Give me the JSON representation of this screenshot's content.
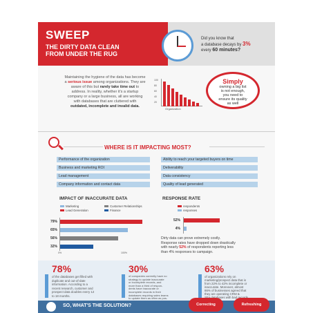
{
  "header": {
    "title": "SWEEP",
    "subtitle_line1": "THE DIRTY DATA CLEAN",
    "subtitle_line2": "FROM UNDER THE RUG"
  },
  "decay_question": {
    "text_a": "Did you know that",
    "text_b": "a database decays by",
    "percent": "3%",
    "text_c": "every",
    "period": "60 minutes?"
  },
  "intro": {
    "p1": "Maintaining the hygiene of the data has become",
    "p2a": "a",
    "serious": "serious issue",
    "p2b": "among organizations. They are",
    "p3a": "aware of this but",
    "rarely": "rarely take time out",
    "p3b": "to",
    "p4": "address. In reality, whether it's a startup",
    "p5": "company or a large business, all are working",
    "p6": "with databases that are cluttered with",
    "outdated": "outdated, incomplete and invalid data."
  },
  "mini_chart": {
    "xlabel": "Organization",
    "ticks": [
      "100",
      "80",
      "60",
      "40",
      "20"
    ]
  },
  "simply": {
    "title": "Simply",
    "l1": "owning a big list",
    "l2": "is not enough,",
    "l3": "you need to",
    "l4": "ensure its quality",
    "l5": "as well"
  },
  "where": {
    "title": "WHERE IS IT IMPACTING MOST?",
    "left": [
      "Performance of the organization",
      "Business and marketing ROI",
      "Lead management",
      "Company information and contact data"
    ],
    "right": [
      "Ability to reach your targeted buyers on time",
      "Deliverability",
      "Data consistency",
      "Quality of lead generated"
    ]
  },
  "impact": {
    "title": "IMPACT OF INACCURATE DATA",
    "legend": [
      "Marketing",
      "Lead Generation",
      "Customer Relationships",
      "Finance"
    ],
    "legend_colors": [
      "#8fb8de",
      "#d4272e",
      "#7f7f7f",
      "#1f5aa0"
    ],
    "axis_min": "0%",
    "axis_max": "100%"
  },
  "response": {
    "title": "RESPONSE RATE",
    "legend": [
      "respondents",
      "responses"
    ],
    "legend_colors": [
      "#d4272e",
      "#8fb8de"
    ]
  },
  "response_note": {
    "a": "Dirty data can prove extremely costly.",
    "b": "Response rates have dropped down drastically",
    "c1": "with nearly",
    "pct": "52%",
    "c2": "of respondents reporting less",
    "d": "than 4% responses to campaign."
  },
  "chart_data": [
    {
      "type": "bar",
      "title": "IMPACT OF INACCURATE DATA",
      "categories": [
        "79%",
        "65%",
        "56%",
        "32%"
      ],
      "values": [
        79,
        65,
        56,
        32
      ],
      "colors": [
        "#d4272e",
        "#8fb8de",
        "#7f7f7f",
        "#1f5aa0"
      ],
      "xlim": [
        0,
        100
      ],
      "xlabel": "",
      "ylabel": ""
    },
    {
      "type": "bar",
      "title": "RESPONSE RATE",
      "categories": [
        "52%",
        "4%"
      ],
      "values": [
        52,
        4
      ],
      "colors": [
        "#d4272e",
        "#8fb8de"
      ],
      "xlabel": "",
      "ylabel": ""
    }
  ],
  "stats": [
    {
      "big": "78%",
      "l1": "of the databases get filled with",
      "l2": "duplicate and out-of-date",
      "l3": "information. According to a",
      "l4": "recent research, customer and",
      "l5": "prospect data doubles every 12",
      "l6": "to 18 months."
    },
    {
      "big": "30%",
      "l1": "of companies currently have no",
      "l2": "strategy to update inaccurate",
      "l3": "or incomplete records, and",
      "l4": "more than a third of respon-",
      "l5": "dents have inaccurate or",
      "l6": "incomplete records in their",
      "l7": "databases requiring sales teams",
      "l8": "to update them as often as pos-",
      "l9": "sible"
    },
    {
      "big": "63%",
      "l1": "of organizations rely on",
      "l2": "marketing/prospect data that is",
      "l3": "from 22% to 42% incomplete or",
      "l4": "inaccurate. Moreover, almost",
      "l5": "86% of businesses agreed that",
      "l6": "they are operating CRM &",
      "l7": "SFA databases with bad records"
    }
  ],
  "solution": {
    "title": "SO, WHAT'S THE SOLUTION?",
    "pill1": "Correcting",
    "pill2": "Refreshing"
  }
}
